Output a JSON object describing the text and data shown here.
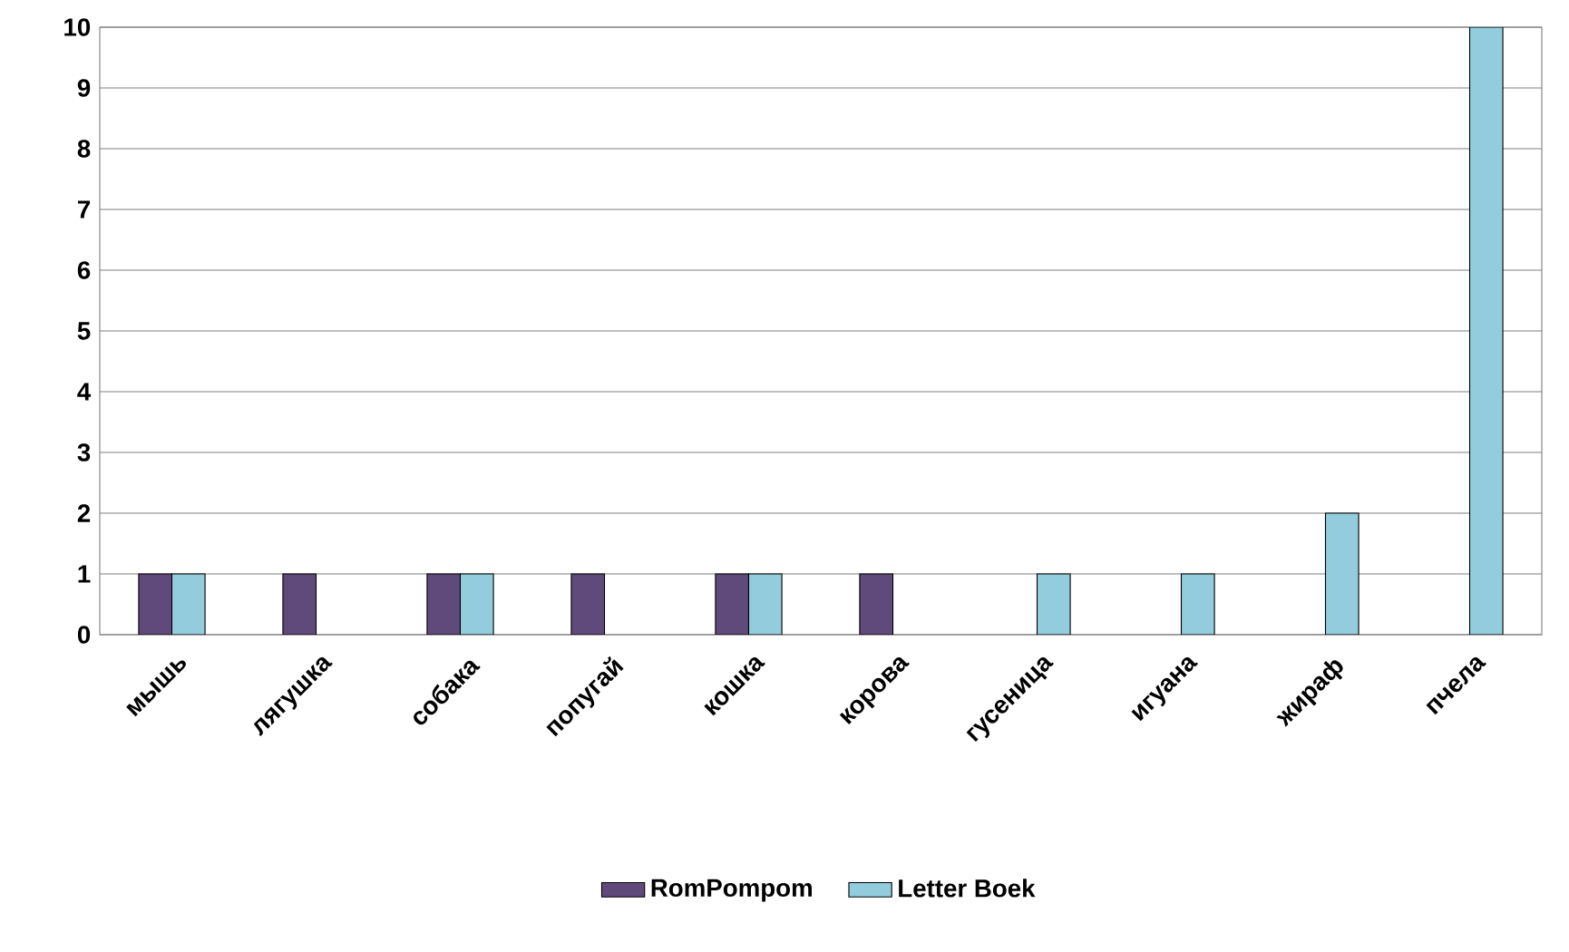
{
  "chart_data": {
    "type": "bar",
    "categories": [
      "мышь",
      "лягушка",
      "собака",
      "попугай",
      "кошка",
      "корова",
      "гусеница",
      "игуана",
      "жираф",
      "пчела"
    ],
    "series": [
      {
        "name": "RomPompom",
        "color": "#604a7b",
        "values": [
          1,
          1,
          1,
          1,
          1,
          1,
          null,
          null,
          null,
          null
        ]
      },
      {
        "name": "Letter Boek",
        "color": "#93cddd",
        "values": [
          1,
          null,
          1,
          null,
          1,
          null,
          1,
          1,
          2,
          10
        ]
      }
    ],
    "ylim": [
      0,
      10
    ],
    "yticks": [
      0,
      1,
      2,
      3,
      4,
      5,
      6,
      7,
      8,
      9,
      10
    ],
    "grid": "y",
    "legend": "bottom"
  }
}
